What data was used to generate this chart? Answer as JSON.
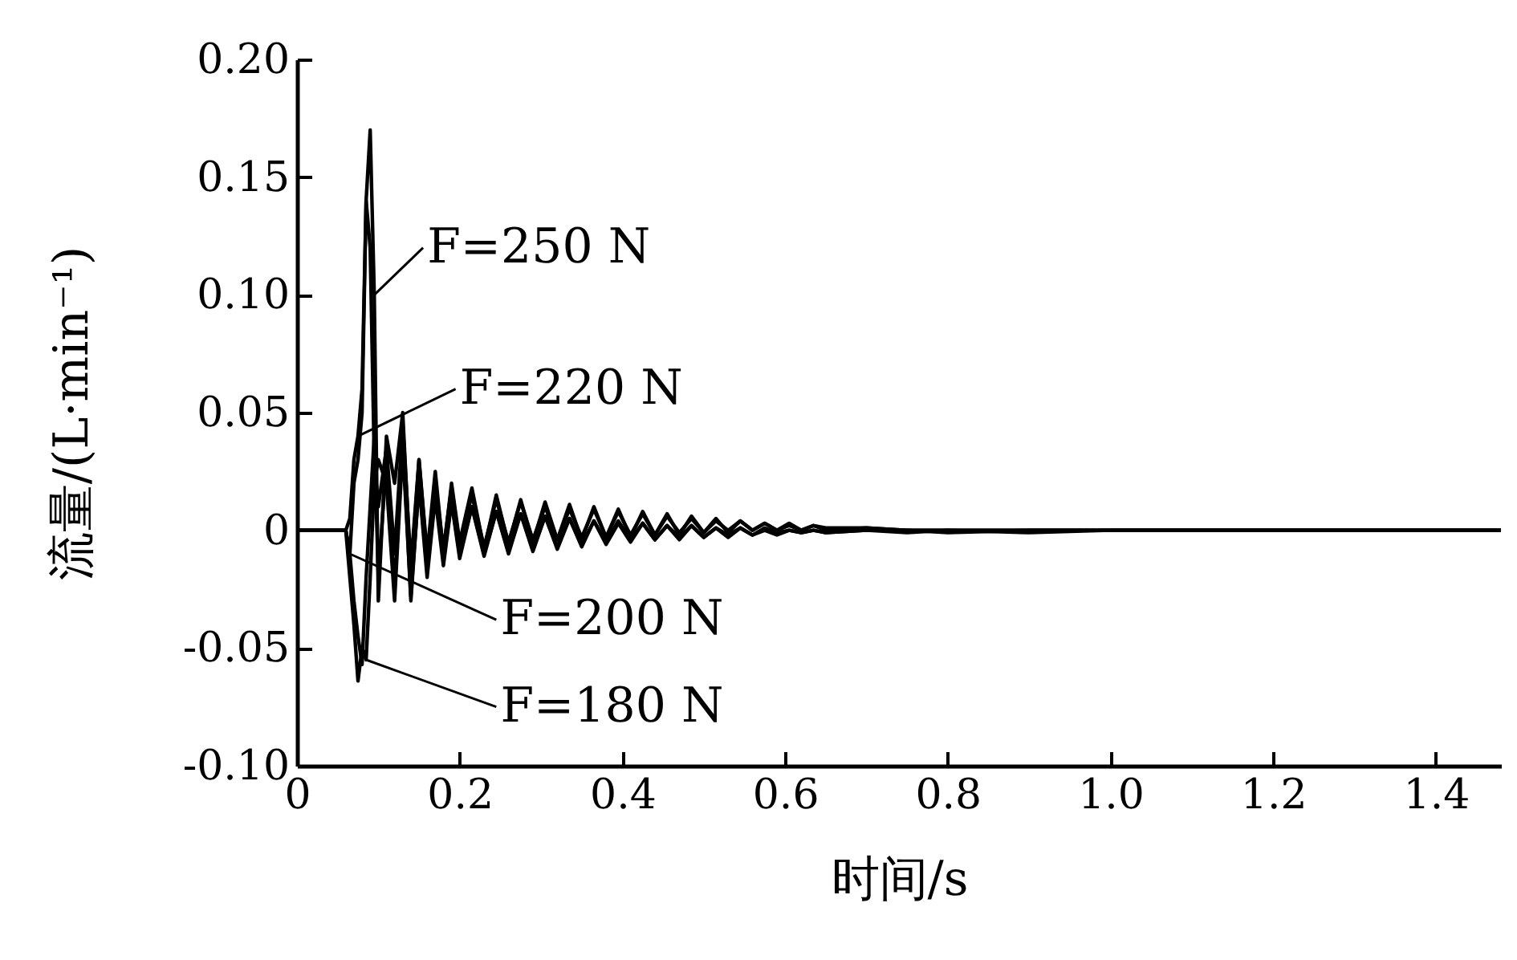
{
  "chart_data": {
    "type": "line",
    "xlabel": "时间/s",
    "ylabel": "流量/(L·min⁻¹)",
    "x": [
      0,
      0.06,
      0.065,
      0.07,
      0.075,
      0.08,
      0.085,
      0.09,
      0.095,
      0.1,
      0.11,
      0.12,
      0.13,
      0.14,
      0.15,
      0.16,
      0.17,
      0.18,
      0.19,
      0.2,
      0.215,
      0.23,
      0.245,
      0.26,
      0.275,
      0.29,
      0.305,
      0.32,
      0.335,
      0.35,
      0.365,
      0.38,
      0.395,
      0.41,
      0.425,
      0.44,
      0.455,
      0.47,
      0.485,
      0.5,
      0.515,
      0.53,
      0.545,
      0.56,
      0.575,
      0.59,
      0.605,
      0.62,
      0.635,
      0.65,
      0.7,
      0.75,
      0.8,
      0.9,
      1.0,
      1.48
    ],
    "series": [
      {
        "name": "F=250 N",
        "color": "#000000",
        "values": [
          0,
          0,
          -0.01,
          0.02,
          0.03,
          0.05,
          0.14,
          0.17,
          0.1,
          -0.03,
          0.04,
          0.02,
          0.05,
          -0.02,
          0.03,
          -0.01,
          0.025,
          -0.01,
          0.02,
          -0.005,
          0.018,
          -0.008,
          0.015,
          -0.006,
          0.013,
          -0.005,
          0.012,
          -0.004,
          0.011,
          -0.004,
          0.01,
          -0.003,
          0.009,
          -0.003,
          0.008,
          -0.002,
          0.007,
          -0.002,
          0.006,
          -0.001,
          0.005,
          -0.001,
          0.004,
          0,
          0.003,
          0,
          0.003,
          0,
          0.002,
          0.001,
          0.001,
          0,
          0,
          0,
          0,
          0
        ]
      },
      {
        "name": "F=220 N",
        "color": "#000000",
        "values": [
          0,
          0,
          0.005,
          0.03,
          0.04,
          0.06,
          0.14,
          0.12,
          0.03,
          0.01,
          0.035,
          -0.01,
          0.045,
          -0.015,
          0.03,
          -0.012,
          0.02,
          -0.008,
          0.018,
          -0.006,
          0.015,
          -0.007,
          0.013,
          -0.005,
          0.012,
          -0.004,
          0.01,
          -0.004,
          0.009,
          -0.003,
          0.009,
          -0.003,
          0.008,
          -0.002,
          0.007,
          -0.002,
          0.006,
          -0.001,
          0.005,
          -0.001,
          0.004,
          0,
          0.004,
          0,
          0.003,
          0,
          0.002,
          0,
          0.002,
          0,
          0.001,
          0,
          0,
          0,
          0,
          0
        ]
      },
      {
        "name": "F=200 N",
        "color": "#000000",
        "values": [
          0,
          0,
          -0.01,
          -0.03,
          -0.045,
          -0.057,
          -0.02,
          0.01,
          0.04,
          -0.02,
          0.03,
          -0.025,
          0.04,
          -0.03,
          0.02,
          -0.015,
          0.015,
          -0.012,
          0.012,
          -0.01,
          0.01,
          -0.01,
          0.008,
          -0.009,
          0.007,
          -0.008,
          0.006,
          -0.007,
          0.005,
          -0.006,
          0.004,
          -0.005,
          0.004,
          -0.004,
          0.003,
          -0.004,
          0.002,
          -0.003,
          0.002,
          -0.003,
          0.001,
          -0.002,
          0.001,
          -0.002,
          0.001,
          -0.001,
          0,
          -0.001,
          0,
          -0.001,
          0,
          0,
          -0.001,
          0,
          0,
          0
        ]
      },
      {
        "name": "F=180 N",
        "color": "#000000",
        "values": [
          0,
          0,
          -0.02,
          -0.04,
          -0.064,
          -0.05,
          -0.055,
          -0.02,
          0.02,
          0.03,
          0.02,
          -0.03,
          0.035,
          -0.028,
          0.02,
          -0.02,
          0.014,
          -0.015,
          0.012,
          -0.012,
          0.01,
          -0.011,
          0.008,
          -0.01,
          0.007,
          -0.009,
          0.006,
          -0.008,
          0.005,
          -0.007,
          0.004,
          -0.006,
          0.003,
          -0.005,
          0.003,
          -0.004,
          0.002,
          -0.004,
          0.002,
          -0.003,
          0.001,
          -0.003,
          0.001,
          -0.002,
          0,
          -0.002,
          0,
          -0.001,
          0,
          -0.001,
          0,
          -0.001,
          0,
          -0.001,
          0,
          0
        ]
      }
    ],
    "xlim": [
      0,
      1.48
    ],
    "xticks": [
      {
        "value": 0,
        "label": "0"
      },
      0.2,
      0.4,
      0.6,
      0.8,
      {
        "value": 1.0,
        "label": "1.0"
      },
      1.2,
      1.4
    ],
    "ylim": [
      -0.1,
      0.2
    ],
    "yticks": [
      {
        "value": -0.1,
        "label": "-0.10"
      },
      {
        "value": -0.05,
        "label": "-0.05"
      },
      {
        "value": 0,
        "label": "0"
      },
      {
        "value": 0.05,
        "label": "0.05"
      },
      {
        "value": 0.1,
        "label": "0.10"
      },
      {
        "value": 0.15,
        "label": "0.15"
      },
      {
        "value": 0.2,
        "label": "0.20"
      }
    ],
    "grid": false,
    "legend": "left",
    "marker": "none",
    "line_style": "solid"
  }
}
